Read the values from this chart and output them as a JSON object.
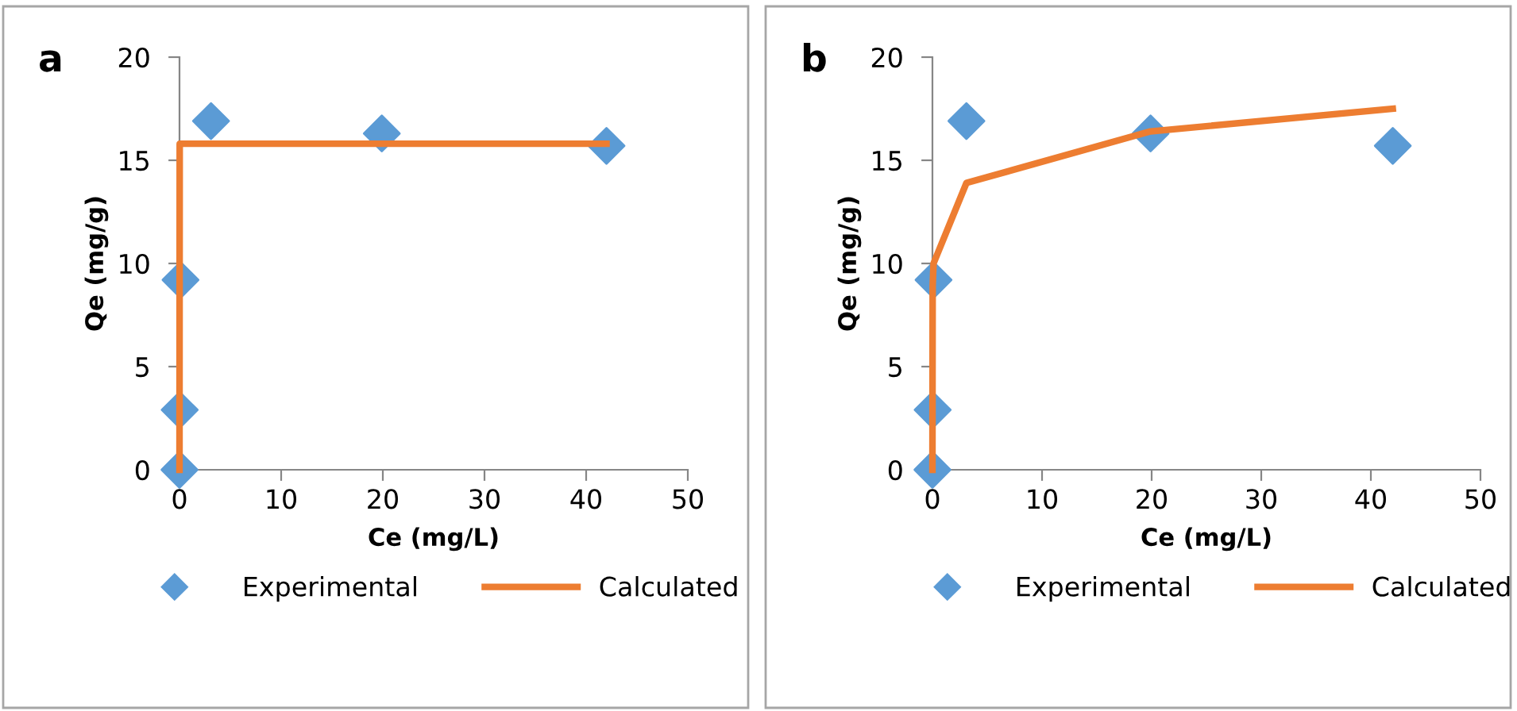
{
  "chart_data": [
    {
      "type": "scatter",
      "title": "a",
      "xlabel": "Ce (mg/L)",
      "ylabel": "Qe (mg/g)",
      "xlim": [
        0,
        50
      ],
      "xticks": [
        0,
        10,
        20,
        30,
        40,
        50
      ],
      "ylim": [
        0,
        20
      ],
      "yticks": [
        0,
        5,
        10,
        15,
        20
      ],
      "grid": false,
      "legend": "bottom",
      "series": [
        {
          "name": "Experimental",
          "marker": "diamond",
          "color": "#5b9bd5",
          "x": [
            0,
            0.02,
            0.1,
            3.1,
            19.9,
            42
          ],
          "values": [
            0,
            2.9,
            9.2,
            16.9,
            16.3,
            15.7
          ]
        },
        {
          "name": "Calculated",
          "type": "line",
          "marker": "none",
          "line_style": "solid",
          "color": "#ed7d31",
          "x": [
            0,
            0.02,
            0.1,
            3.1,
            19.9,
            42
          ],
          "values": [
            0,
            15.8,
            15.8,
            15.8,
            15.8,
            15.8
          ]
        }
      ]
    },
    {
      "type": "scatter",
      "title": "b",
      "xlabel": "Ce (mg/L)",
      "ylabel": "Qe (mg/g)",
      "xlim": [
        0,
        50
      ],
      "xticks": [
        0,
        10,
        20,
        30,
        40,
        50
      ],
      "ylim": [
        0,
        20
      ],
      "yticks": [
        0,
        5,
        10,
        15,
        20
      ],
      "grid": false,
      "legend": "bottom",
      "series": [
        {
          "name": "Experimental",
          "marker": "diamond",
          "color": "#5b9bd5",
          "x": [
            0,
            0.02,
            0.1,
            3.1,
            19.9,
            42
          ],
          "values": [
            0,
            2.9,
            9.2,
            16.9,
            16.3,
            15.7
          ]
        },
        {
          "name": "Calculated",
          "type": "line",
          "marker": "none",
          "line_style": "solid",
          "color": "#ed7d31",
          "x": [
            0,
            0.02,
            0.1,
            3.1,
            19.9,
            42
          ],
          "values": [
            0,
            8.9,
            10.0,
            13.9,
            16.4,
            17.5
          ]
        }
      ]
    }
  ]
}
